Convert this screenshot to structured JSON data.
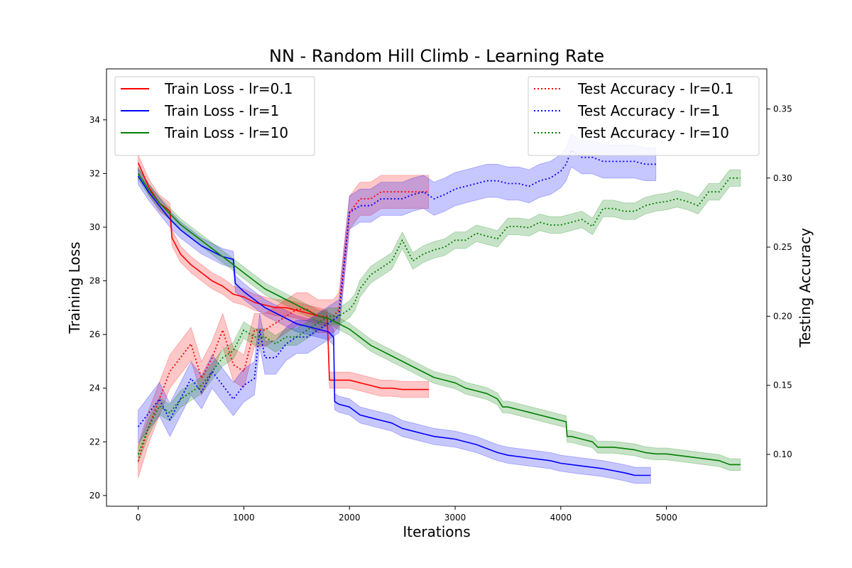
{
  "chart_data": {
    "type": "line",
    "title": "NN - Random Hill Climb - Learning Rate",
    "xlabel": "Iterations",
    "ylabel_left": "Training Loss",
    "ylabel_right": "Testing Accuracy",
    "xlim": [
      -300,
      5950
    ],
    "ylim_left": [
      19.6,
      35.9
    ],
    "ylim_right": [
      0.0625,
      0.379
    ],
    "xticks": [
      0,
      1000,
      2000,
      3000,
      4000,
      5000
    ],
    "yticks_left": [
      20,
      22,
      24,
      26,
      28,
      30,
      32,
      34
    ],
    "yticks_right": [
      0.1,
      0.15,
      0.2,
      0.25,
      0.3,
      0.35
    ],
    "ytick_labels_right": [
      "0.10",
      "0.15",
      "0.20",
      "0.25",
      "0.30",
      "0.35"
    ],
    "grid": false,
    "legend_left": {
      "placement": "upper-left",
      "entries": [
        {
          "label": "Train Loss - lr=0.1",
          "color": "#ff0000",
          "style": "solid"
        },
        {
          "label": "Train Loss - lr=1",
          "color": "#0000ff",
          "style": "solid"
        },
        {
          "label": "Train Loss - lr=10",
          "color": "#008000",
          "style": "solid"
        }
      ]
    },
    "legend_right": {
      "placement": "upper-right",
      "entries": [
        {
          "label": "Test Accuracy - lr=0.1",
          "color": "#ff0000",
          "style": "dotted"
        },
        {
          "label": "Test Accuracy - lr=1",
          "color": "#0000ff",
          "style": "dotted"
        },
        {
          "label": "Test Accuracy - lr=10",
          "color": "#008000",
          "style": "dotted"
        }
      ]
    },
    "series": [
      {
        "axis": "left",
        "color": "#ff0000",
        "style": "solid",
        "band": 0.3,
        "x": [
          0,
          100,
          200,
          300,
          320,
          400,
          500,
          600,
          700,
          800,
          900,
          1000,
          1100,
          1200,
          1300,
          1400,
          1500,
          1600,
          1700,
          1790,
          1810,
          1900,
          2000,
          2100,
          2200,
          2300,
          2400,
          2500,
          2600,
          2750
        ],
        "y": [
          32.4,
          31.5,
          30.9,
          30.6,
          29.6,
          29.0,
          28.6,
          28.3,
          28.0,
          27.8,
          27.5,
          27.4,
          27.2,
          27.1,
          27.0,
          27.0,
          26.9,
          26.8,
          26.7,
          26.6,
          24.3,
          24.3,
          24.3,
          24.2,
          24.1,
          24.0,
          24.0,
          23.95,
          23.95,
          23.95
        ]
      },
      {
        "axis": "left",
        "color": "#0000ff",
        "style": "solid",
        "band": 0.3,
        "x": [
          0,
          100,
          200,
          300,
          400,
          500,
          600,
          700,
          800,
          900,
          920,
          1000,
          1100,
          1200,
          1300,
          1400,
          1500,
          1600,
          1700,
          1800,
          1850,
          1860,
          1900,
          2000,
          2100,
          2200,
          2300,
          2400,
          2500,
          2600,
          2700,
          2800,
          3000,
          3200,
          3400,
          3500,
          3700,
          3900,
          4000,
          4200,
          4400,
          4600,
          4700,
          4850
        ],
        "y": [
          31.9,
          31.3,
          30.8,
          30.3,
          29.9,
          29.6,
          29.3,
          29.1,
          28.9,
          28.8,
          27.9,
          27.6,
          27.3,
          27.0,
          26.8,
          26.6,
          26.4,
          26.3,
          26.2,
          26.1,
          25.9,
          23.5,
          23.4,
          23.3,
          23.0,
          22.9,
          22.8,
          22.7,
          22.5,
          22.4,
          22.3,
          22.2,
          22.1,
          21.9,
          21.6,
          21.5,
          21.4,
          21.3,
          21.2,
          21.1,
          21.0,
          20.85,
          20.75,
          20.75
        ]
      },
      {
        "axis": "left",
        "color": "#008000",
        "style": "solid",
        "band": 0.22,
        "x": [
          0,
          100,
          200,
          300,
          400,
          500,
          600,
          700,
          800,
          900,
          1000,
          1100,
          1200,
          1300,
          1400,
          1500,
          1600,
          1700,
          1800,
          1900,
          2000,
          2100,
          2200,
          2300,
          2400,
          2500,
          2600,
          2700,
          2800,
          2900,
          3000,
          3100,
          3200,
          3300,
          3400,
          3450,
          3500,
          3600,
          3700,
          3800,
          3900,
          4000,
          4050,
          4060,
          4100,
          4200,
          4300,
          4350,
          4500,
          4600,
          4700,
          4800,
          4900,
          5000,
          5100,
          5200,
          5300,
          5400,
          5500,
          5600,
          5700
        ],
        "y": [
          32.0,
          31.4,
          30.9,
          30.5,
          30.1,
          29.8,
          29.5,
          29.2,
          28.9,
          28.6,
          28.3,
          28.0,
          27.7,
          27.5,
          27.3,
          27.1,
          26.9,
          26.7,
          26.6,
          26.4,
          26.2,
          25.9,
          25.6,
          25.4,
          25.2,
          25.0,
          24.8,
          24.6,
          24.4,
          24.3,
          24.2,
          24.0,
          23.9,
          23.8,
          23.6,
          23.3,
          23.3,
          23.2,
          23.1,
          23.0,
          22.9,
          22.8,
          22.75,
          22.2,
          22.2,
          22.1,
          22.0,
          21.8,
          21.8,
          21.75,
          21.7,
          21.6,
          21.55,
          21.55,
          21.5,
          21.45,
          21.4,
          21.35,
          21.3,
          21.15,
          21.15
        ]
      },
      {
        "axis": "right",
        "color": "#ff0000",
        "style": "dotted",
        "band": 0.012,
        "x": [
          0,
          100,
          200,
          300,
          400,
          500,
          600,
          700,
          800,
          900,
          1000,
          1100,
          1200,
          1300,
          1400,
          1500,
          1600,
          1700,
          1800,
          1850,
          1900,
          2000,
          2100,
          2200,
          2300,
          2400,
          2500,
          2600,
          2750
        ],
        "y": [
          0.095,
          0.12,
          0.14,
          0.16,
          0.17,
          0.18,
          0.155,
          0.17,
          0.19,
          0.165,
          0.16,
          0.19,
          0.19,
          0.195,
          0.2,
          0.205,
          0.205,
          0.2,
          0.2,
          0.2,
          0.205,
          0.275,
          0.285,
          0.285,
          0.29,
          0.29,
          0.29,
          0.29,
          0.29
        ]
      },
      {
        "axis": "right",
        "color": "#0000ff",
        "style": "dotted",
        "band": 0.012,
        "x": [
          0,
          100,
          200,
          300,
          400,
          500,
          600,
          700,
          800,
          900,
          1000,
          1100,
          1150,
          1200,
          1300,
          1400,
          1500,
          1600,
          1700,
          1800,
          1900,
          2000,
          2100,
          2200,
          2300,
          2400,
          2500,
          2600,
          2700,
          2800,
          2900,
          3000,
          3100,
          3200,
          3300,
          3400,
          3500,
          3600,
          3700,
          3800,
          3900,
          4000,
          4050,
          4100,
          4200,
          4300,
          4400,
          4500,
          4600,
          4700,
          4800,
          4900
        ],
        "y": [
          0.12,
          0.13,
          0.14,
          0.125,
          0.14,
          0.155,
          0.145,
          0.16,
          0.15,
          0.14,
          0.15,
          0.155,
          0.19,
          0.17,
          0.17,
          0.18,
          0.185,
          0.185,
          0.19,
          0.195,
          0.2,
          0.275,
          0.28,
          0.28,
          0.285,
          0.285,
          0.285,
          0.288,
          0.29,
          0.285,
          0.288,
          0.292,
          0.294,
          0.296,
          0.298,
          0.298,
          0.296,
          0.296,
          0.294,
          0.298,
          0.3,
          0.305,
          0.31,
          0.32,
          0.315,
          0.315,
          0.312,
          0.312,
          0.312,
          0.312,
          0.31,
          0.31
        ]
      },
      {
        "axis": "right",
        "color": "#008000",
        "style": "dotted",
        "band": 0.006,
        "x": [
          0,
          100,
          200,
          300,
          400,
          500,
          600,
          700,
          800,
          900,
          1000,
          1100,
          1200,
          1300,
          1400,
          1500,
          1600,
          1700,
          1800,
          1900,
          2000,
          2050,
          2100,
          2200,
          2300,
          2400,
          2500,
          2600,
          2700,
          2800,
          2900,
          3000,
          3100,
          3200,
          3300,
          3400,
          3500,
          3600,
          3700,
          3800,
          3900,
          4000,
          4100,
          4200,
          4300,
          4400,
          4500,
          4600,
          4700,
          4800,
          4900,
          5000,
          5100,
          5200,
          5300,
          5400,
          5500,
          5600,
          5700
        ],
        "y": [
          0.1,
          0.12,
          0.135,
          0.13,
          0.14,
          0.145,
          0.15,
          0.16,
          0.17,
          0.175,
          0.19,
          0.185,
          0.185,
          0.18,
          0.185,
          0.185,
          0.19,
          0.195,
          0.2,
          0.2,
          0.205,
          0.21,
          0.22,
          0.23,
          0.235,
          0.24,
          0.255,
          0.24,
          0.245,
          0.248,
          0.25,
          0.255,
          0.255,
          0.26,
          0.258,
          0.256,
          0.265,
          0.265,
          0.264,
          0.268,
          0.266,
          0.266,
          0.268,
          0.27,
          0.265,
          0.278,
          0.278,
          0.276,
          0.276,
          0.28,
          0.282,
          0.283,
          0.285,
          0.283,
          0.28,
          0.29,
          0.29,
          0.3,
          0.3
        ]
      }
    ]
  }
}
